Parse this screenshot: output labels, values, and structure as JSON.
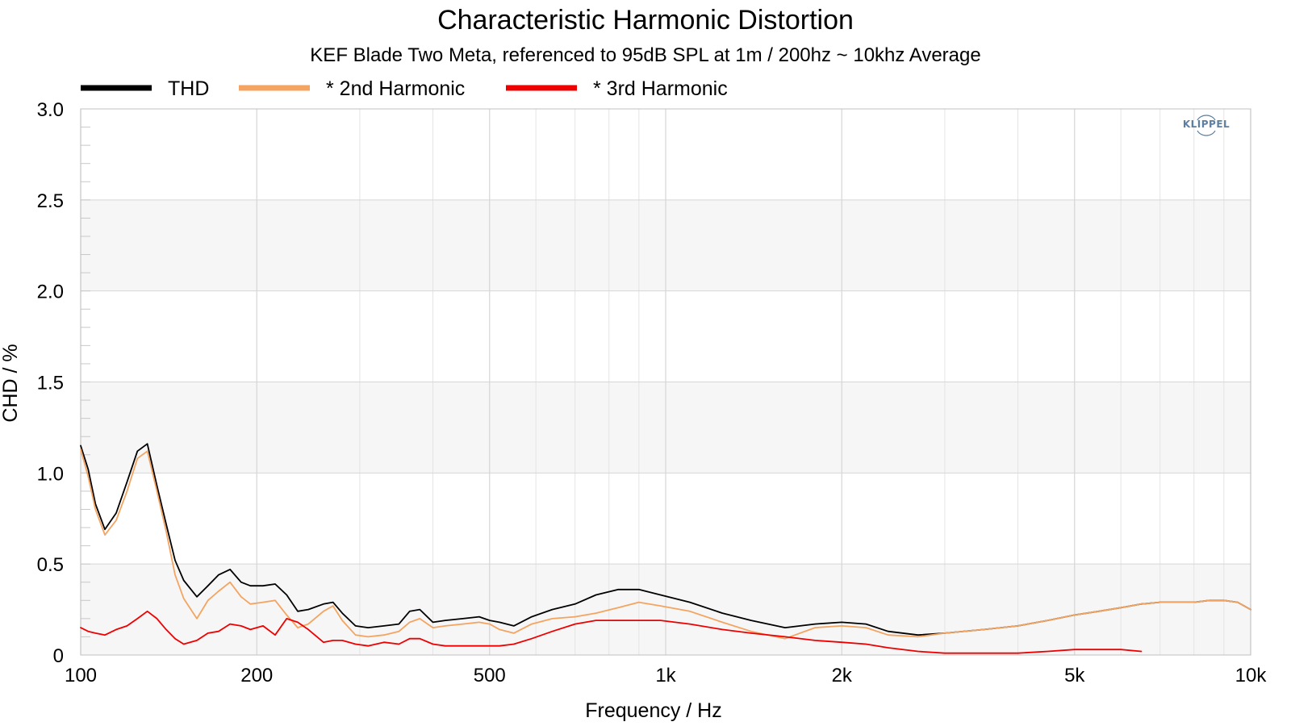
{
  "chart_data": {
    "type": "line",
    "title": "Characteristic Harmonic Distortion",
    "subtitle": "KEF Blade Two Meta, referenced to 95dB SPL at 1m / 200hz ~ 10khz Average",
    "xlabel": "Frequency / Hz",
    "ylabel": "CHD / %",
    "xscale": "log",
    "xlim": [
      100,
      10000
    ],
    "ylim": [
      0,
      3.0
    ],
    "xticks": [
      100,
      200,
      500,
      1000,
      2000,
      5000,
      10000
    ],
    "xtick_labels": [
      "100",
      "200",
      "500",
      "1k",
      "2k",
      "5k",
      "10k"
    ],
    "yticks": [
      0,
      0.5,
      1.0,
      1.5,
      2.0,
      2.5,
      3.0
    ],
    "ytick_labels": [
      "0",
      "0.5",
      "1.0",
      "1.5",
      "2.0",
      "2.5",
      "3.0"
    ],
    "grid": true,
    "legend_position": "top-left",
    "watermark": "KLIPPEL",
    "series": [
      {
        "name": "THD",
        "color": "#000000",
        "x": [
          100,
          103,
          106,
          110,
          115,
          120,
          125,
          130,
          135,
          140,
          145,
          150,
          158,
          165,
          172,
          180,
          188,
          195,
          205,
          215,
          225,
          235,
          245,
          260,
          270,
          280,
          295,
          310,
          330,
          350,
          365,
          380,
          400,
          420,
          450,
          480,
          500,
          520,
          550,
          590,
          640,
          700,
          760,
          830,
          900,
          980,
          1100,
          1250,
          1400,
          1600,
          1800,
          2000,
          2200,
          2400,
          2700,
          3000,
          3500,
          4000,
          4500,
          5000,
          5500,
          6000,
          6500,
          7000,
          7500,
          8000,
          8500,
          9000,
          9500,
          10000
        ],
        "y": [
          1.15,
          1.02,
          0.83,
          0.69,
          0.78,
          0.95,
          1.12,
          1.16,
          0.93,
          0.72,
          0.52,
          0.41,
          0.32,
          0.38,
          0.44,
          0.47,
          0.4,
          0.38,
          0.38,
          0.39,
          0.33,
          0.24,
          0.25,
          0.28,
          0.29,
          0.23,
          0.16,
          0.15,
          0.16,
          0.17,
          0.24,
          0.25,
          0.18,
          0.19,
          0.2,
          0.21,
          0.19,
          0.18,
          0.16,
          0.21,
          0.25,
          0.28,
          0.33,
          0.36,
          0.36,
          0.33,
          0.29,
          0.23,
          0.19,
          0.15,
          0.17,
          0.18,
          0.17,
          0.13,
          0.11,
          0.12,
          0.14,
          0.16,
          0.19,
          0.22,
          0.24,
          0.26,
          0.28,
          0.29,
          0.29,
          0.29,
          0.3,
          0.3,
          0.29,
          0.25
        ]
      },
      {
        "name": "* 2nd Harmonic",
        "color": "#f4a460",
        "x": [
          100,
          103,
          106,
          110,
          115,
          120,
          125,
          130,
          135,
          140,
          145,
          150,
          158,
          165,
          172,
          180,
          188,
          195,
          205,
          215,
          225,
          235,
          245,
          260,
          270,
          280,
          295,
          310,
          330,
          350,
          365,
          380,
          400,
          420,
          450,
          480,
          500,
          520,
          550,
          590,
          640,
          700,
          760,
          830,
          900,
          980,
          1100,
          1250,
          1400,
          1600,
          1800,
          2000,
          2200,
          2400,
          2700,
          3000,
          3500,
          4000,
          4500,
          5000,
          5500,
          6000,
          6500,
          7000,
          7500,
          8000,
          8500,
          9000,
          9500,
          10000
        ],
        "y": [
          1.13,
          0.98,
          0.8,
          0.66,
          0.74,
          0.9,
          1.08,
          1.12,
          0.9,
          0.68,
          0.44,
          0.31,
          0.2,
          0.3,
          0.35,
          0.4,
          0.32,
          0.28,
          0.29,
          0.3,
          0.22,
          0.15,
          0.17,
          0.24,
          0.27,
          0.19,
          0.11,
          0.1,
          0.11,
          0.13,
          0.18,
          0.2,
          0.15,
          0.16,
          0.17,
          0.18,
          0.17,
          0.14,
          0.12,
          0.17,
          0.2,
          0.21,
          0.23,
          0.26,
          0.29,
          0.27,
          0.24,
          0.18,
          0.13,
          0.09,
          0.15,
          0.16,
          0.15,
          0.11,
          0.1,
          0.12,
          0.14,
          0.16,
          0.19,
          0.22,
          0.24,
          0.26,
          0.28,
          0.29,
          0.29,
          0.29,
          0.3,
          0.3,
          0.29,
          0.25
        ]
      },
      {
        "name": "* 3rd Harmonic",
        "color": "#ee0000",
        "x": [
          100,
          103,
          106,
          110,
          115,
          120,
          125,
          130,
          135,
          140,
          145,
          150,
          158,
          165,
          172,
          180,
          188,
          195,
          205,
          215,
          225,
          235,
          245,
          260,
          270,
          280,
          295,
          310,
          330,
          350,
          365,
          380,
          400,
          420,
          450,
          480,
          500,
          520,
          550,
          590,
          640,
          700,
          760,
          830,
          900,
          980,
          1100,
          1250,
          1400,
          1600,
          1800,
          2000,
          2200,
          2400,
          2700,
          3000,
          3500,
          4000,
          4500,
          5000,
          5500,
          6000,
          6500
        ],
        "y": [
          0.15,
          0.13,
          0.12,
          0.11,
          0.14,
          0.16,
          0.2,
          0.24,
          0.2,
          0.14,
          0.09,
          0.06,
          0.08,
          0.12,
          0.13,
          0.17,
          0.16,
          0.14,
          0.16,
          0.11,
          0.2,
          0.18,
          0.14,
          0.07,
          0.08,
          0.08,
          0.06,
          0.05,
          0.07,
          0.06,
          0.09,
          0.09,
          0.06,
          0.05,
          0.05,
          0.05,
          0.05,
          0.05,
          0.06,
          0.09,
          0.13,
          0.17,
          0.19,
          0.19,
          0.19,
          0.19,
          0.17,
          0.14,
          0.12,
          0.1,
          0.08,
          0.07,
          0.06,
          0.04,
          0.02,
          0.01,
          0.01,
          0.01,
          0.02,
          0.03,
          0.03,
          0.03,
          0.02
        ]
      }
    ]
  }
}
